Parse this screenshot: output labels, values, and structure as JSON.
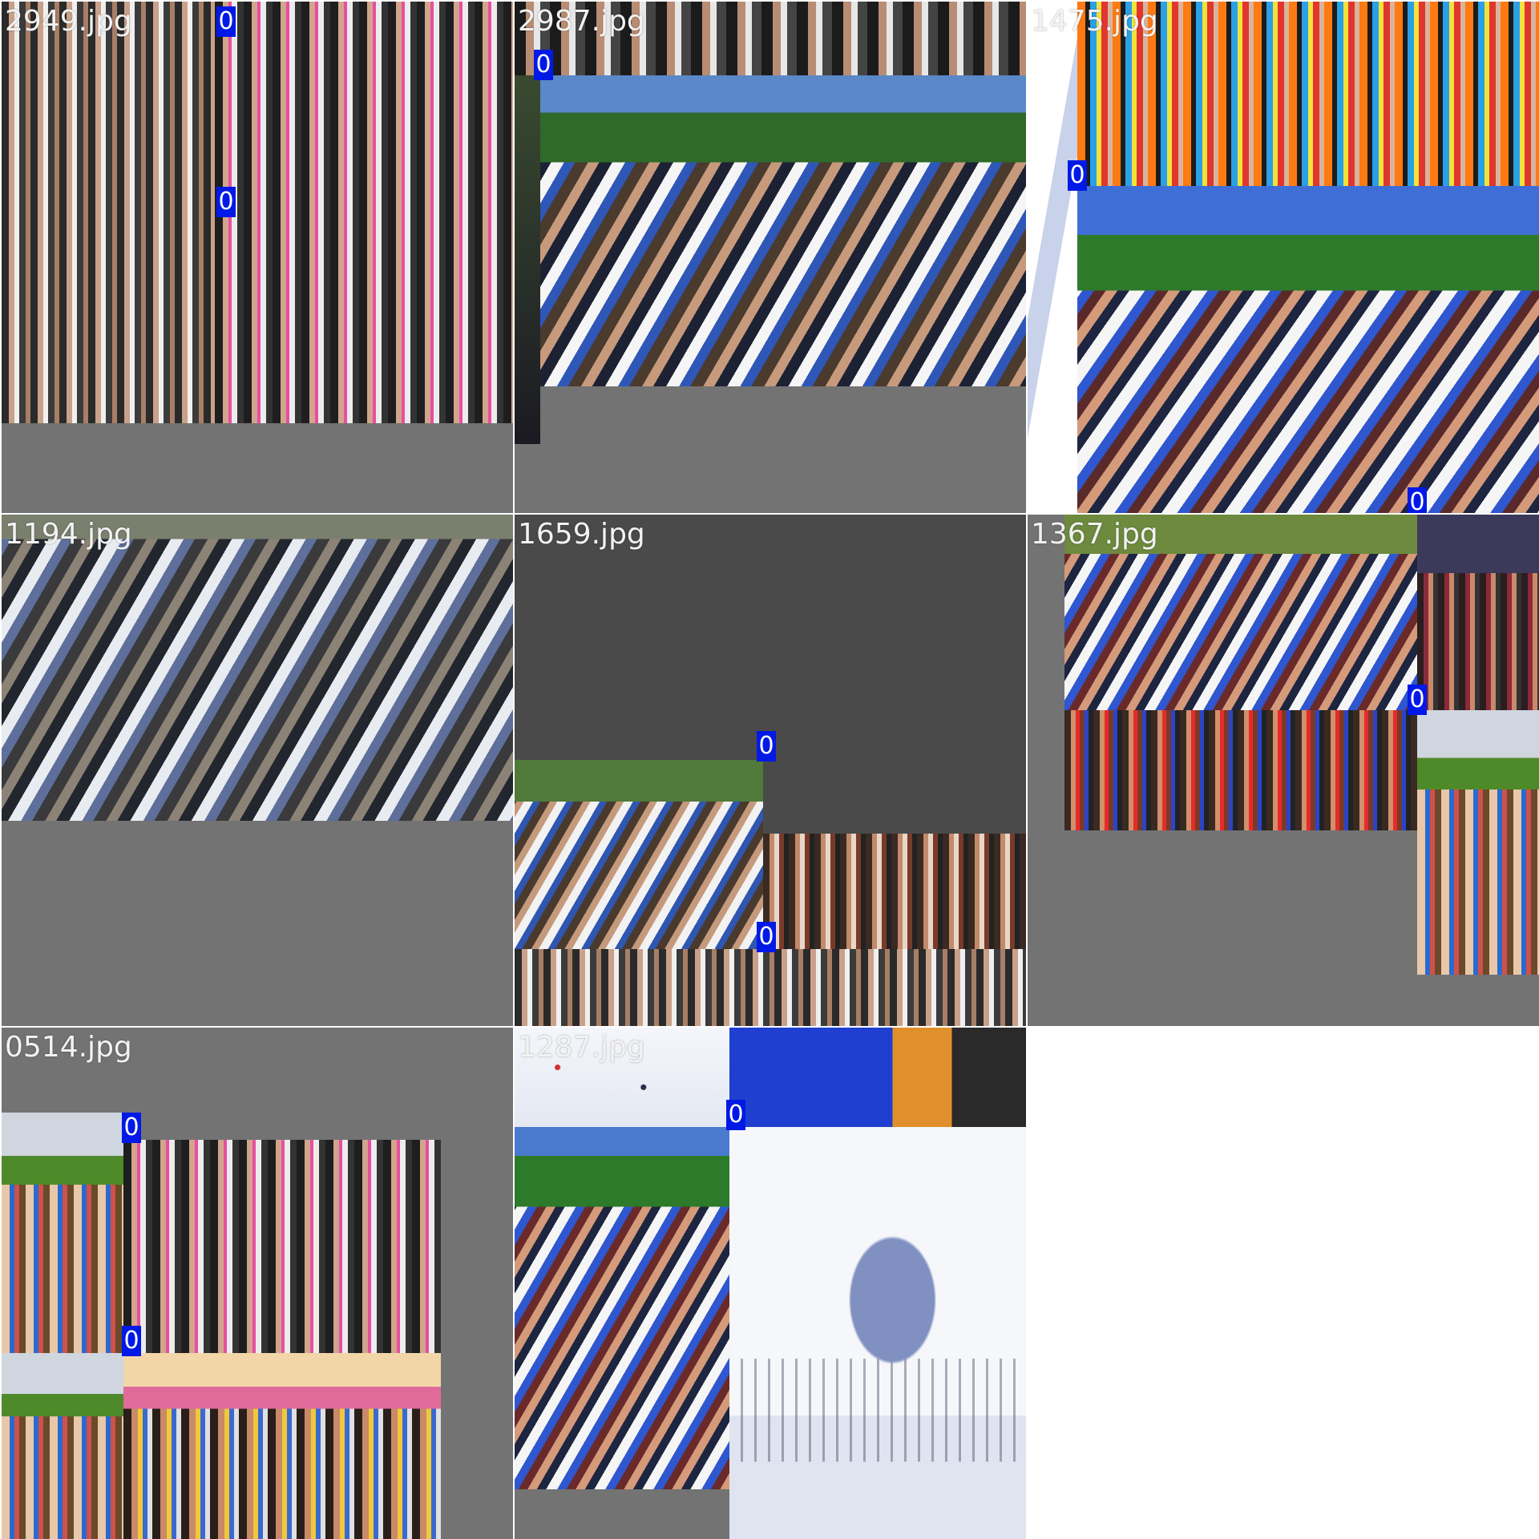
{
  "grid": {
    "tiles": [
      {
        "filename": "2949.jpg",
        "labels": [
          "0",
          "0"
        ]
      },
      {
        "filename": "2987.jpg",
        "labels": [
          "0"
        ]
      },
      {
        "filename": "1475.jpg",
        "labels": [
          "0",
          "0"
        ]
      },
      {
        "filename": "1194.jpg",
        "labels": []
      },
      {
        "filename": "1659.jpg",
        "labels": [
          "0",
          "0"
        ]
      },
      {
        "filename": "1367.jpg",
        "labels": [
          "0"
        ]
      },
      {
        "filename": "0514.jpg",
        "labels": [
          "0",
          "0"
        ]
      },
      {
        "filename": "1287.jpg",
        "labels": [
          "0"
        ]
      }
    ]
  },
  "colors": {
    "padding_gray": "#737373",
    "dark_gray": "#4a4a4a",
    "badge_blue": "#0019e6"
  }
}
